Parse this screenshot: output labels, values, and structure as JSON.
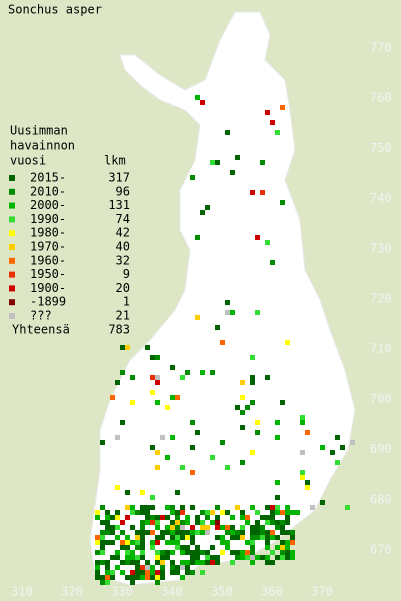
{
  "title": "Sonchus asper",
  "legend": {
    "heading": [
      "Uusimman",
      "havainnon",
      "vuosi"
    ],
    "count_heading": "lkm",
    "entries": [
      {
        "label": "2015-",
        "count": 317,
        "color": "#006400"
      },
      {
        "label": "2010-",
        "count": 96,
        "color": "#008c00"
      },
      {
        "label": "2000-",
        "count": 131,
        "color": "#00b400"
      },
      {
        "label": "1990-",
        "count": 74,
        "color": "#33dd33"
      },
      {
        "label": "1980-",
        "count": 42,
        "color": "#ffff00"
      },
      {
        "label": "1970-",
        "count": 40,
        "color": "#ffcc00"
      },
      {
        "label": "1960-",
        "count": 32,
        "color": "#ff6600"
      },
      {
        "label": "1950-",
        "count": 9,
        "color": "#e83000"
      },
      {
        "label": "1900-",
        "count": 20,
        "color": "#cc0000"
      },
      {
        "label": "-1899",
        "count": 1,
        "color": "#800000"
      },
      {
        "label": "???",
        "count": 21,
        "color": "#c0c0c0"
      }
    ],
    "total_label": "Yhteensä",
    "total": 783
  },
  "grid": {
    "y_labels": [
      770,
      760,
      750,
      740,
      730,
      720,
      710,
      700,
      690,
      680,
      670
    ],
    "x_labels": [
      310,
      320,
      330,
      340,
      350,
      360,
      370
    ]
  }
}
